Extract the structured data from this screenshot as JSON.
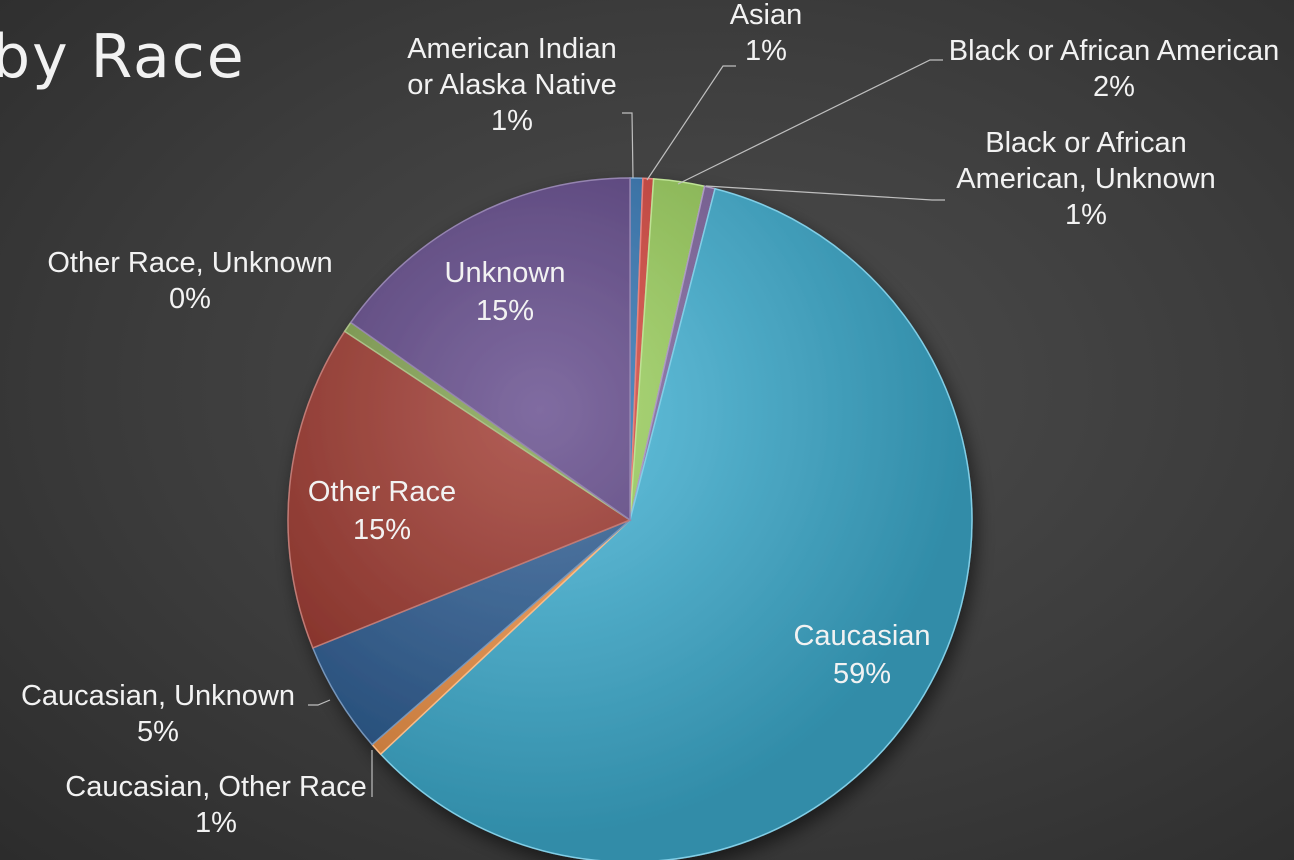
{
  "slide": {
    "title": "by Race"
  },
  "chart_data": {
    "type": "pie",
    "categories": [
      "American Indian or Alaska Native",
      "Asian",
      "Black or African American",
      "Black or African American, Unknown",
      "Caucasian",
      "Caucasian, Other Race",
      "Caucasian, Unknown",
      "Other Race",
      "Other Race, Unknown",
      "Unknown"
    ],
    "values": [
      0.6,
      0.5,
      2.4,
      0.5,
      59.0,
      0.6,
      5.3,
      15.4,
      0.5,
      15.2
    ],
    "slices": [
      {
        "label_lines": [
          "American Indian",
          "or Alaska Native"
        ],
        "percent": "1%",
        "color": "#2e75b6"
      },
      {
        "label_lines": [
          "Asian"
        ],
        "percent": "1%",
        "color": "#d9423a"
      },
      {
        "label_lines": [
          "Black or African American"
        ],
        "percent": "2%",
        "color": "#9bd25a"
      },
      {
        "label_lines": [
          "Black or African",
          "American, Unknown"
        ],
        "percent": "1%",
        "color": "#8064a2"
      },
      {
        "label_lines": [
          "Caucasian"
        ],
        "percent": "59%",
        "color": "#3fb4d8"
      },
      {
        "label_lines": [
          "Caucasian, Other Race"
        ],
        "percent": "1%",
        "color": "#f79646"
      },
      {
        "label_lines": [
          "Caucasian, Unknown"
        ],
        "percent": "5%",
        "color": "#2c5d96"
      },
      {
        "label_lines": [
          "Other Race"
        ],
        "percent": "15%",
        "color": "#9e3329"
      },
      {
        "label_lines": [
          "Other Race, Unknown"
        ],
        "percent": "0%",
        "color": "#7fa04a"
      },
      {
        "label_lines": [
          "Unknown"
        ],
        "percent": "15%",
        "color": "#5c4286"
      }
    ],
    "start_angle_deg": 0,
    "direction": "clockwise",
    "legend": "none",
    "data_labels": "category and percentage"
  }
}
